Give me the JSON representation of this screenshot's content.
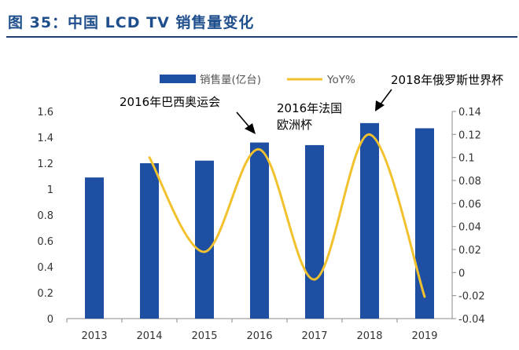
{
  "figure_title": "图 35：中国 LCD TV 销售量变化",
  "chart_data": {
    "type": "bar",
    "categories": [
      "2013",
      "2014",
      "2015",
      "2016",
      "2017",
      "2018",
      "2019"
    ],
    "series": [
      {
        "name": "销售量(亿台)",
        "type": "bar",
        "axis": "left",
        "color": "#1f4fa3",
        "values": [
          1.09,
          1.2,
          1.22,
          1.36,
          1.34,
          1.51,
          1.47
        ]
      },
      {
        "name": "YoY%",
        "type": "line",
        "axis": "right",
        "color": "#f2c12e",
        "x": [
          2014,
          2015,
          2016,
          2017,
          2018,
          2019
        ],
        "values": [
          0.1,
          0.018,
          0.107,
          -0.006,
          0.12,
          -0.021
        ]
      }
    ],
    "ylim": [
      0,
      1.6
    ],
    "yticks": [
      "0",
      "0.2",
      "0.4",
      "0.6",
      "0.8",
      "1",
      "1.2",
      "1.4",
      "1.6"
    ],
    "y2lim": [
      -0.04,
      0.14
    ],
    "y2ticks": [
      "-0.04",
      "-0.02",
      "0",
      "0.02",
      "0.04",
      "0.06",
      "0.08",
      "0.1",
      "0.12",
      "0.14"
    ],
    "legend": "top",
    "grid": false,
    "annotations": [
      {
        "lines": [
          "2016年巴西奥运会"
        ],
        "target": "2016"
      },
      {
        "lines": [
          "2016年法国",
          "欧洲杯"
        ],
        "target": "2016"
      },
      {
        "lines": [
          "2018年俄罗斯世界杯"
        ],
        "target": "2018"
      }
    ]
  }
}
